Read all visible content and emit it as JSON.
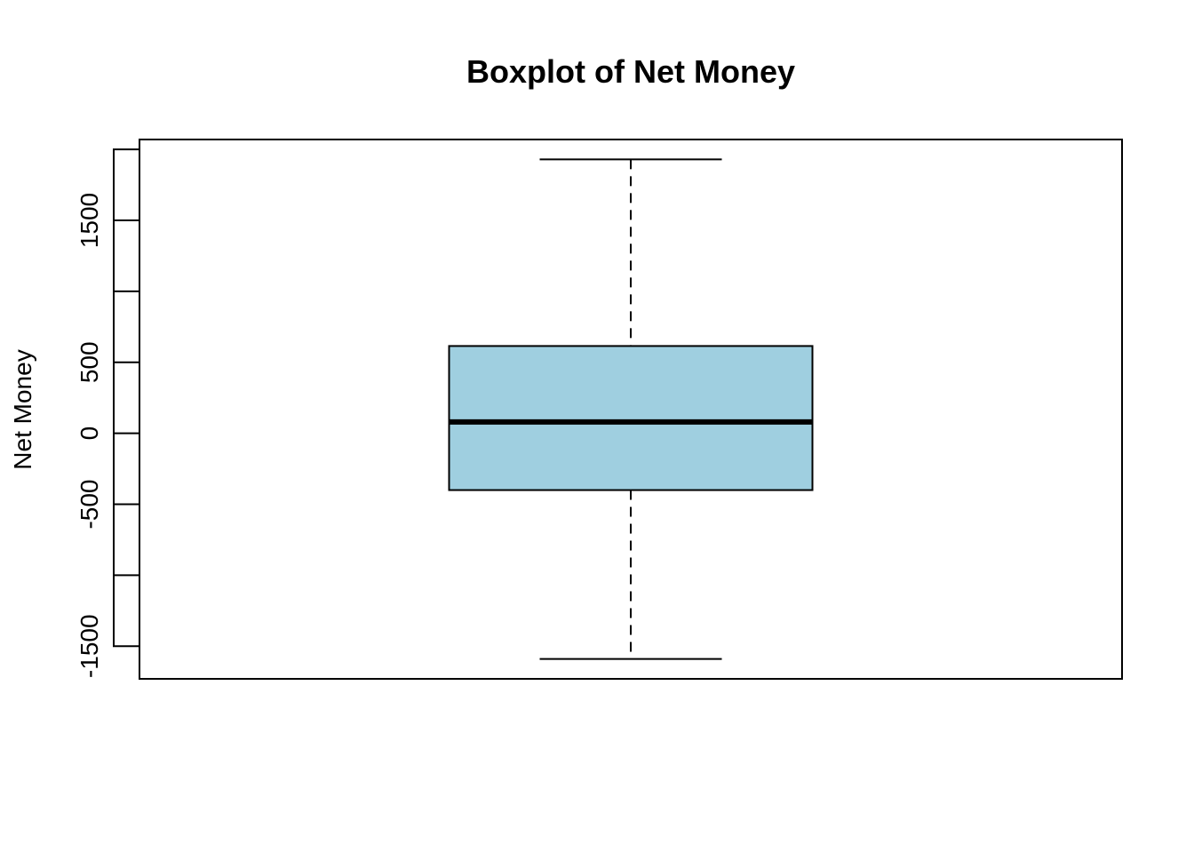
{
  "chart_data": {
    "type": "box",
    "title": "Boxplot of Net Money",
    "xlabel": "",
    "ylabel": "Net Money",
    "ylim": [
      -1730,
      2070
    ],
    "y_ticks": [
      -1500,
      -1000,
      -500,
      0,
      500,
      1000,
      1500,
      2000
    ],
    "y_tick_labels": [
      "-1500",
      "",
      "-500",
      "0",
      "500",
      "",
      "1500",
      ""
    ],
    "grid": false,
    "legend": "none",
    "boxes": [
      {
        "whisker_low": -1590,
        "q1": -400,
        "median": 80,
        "q3": 615,
        "whisker_high": 1930
      }
    ],
    "colors": {
      "box_fill": "#9fcfe0",
      "stroke": "#000000",
      "background": "#ffffff"
    }
  }
}
